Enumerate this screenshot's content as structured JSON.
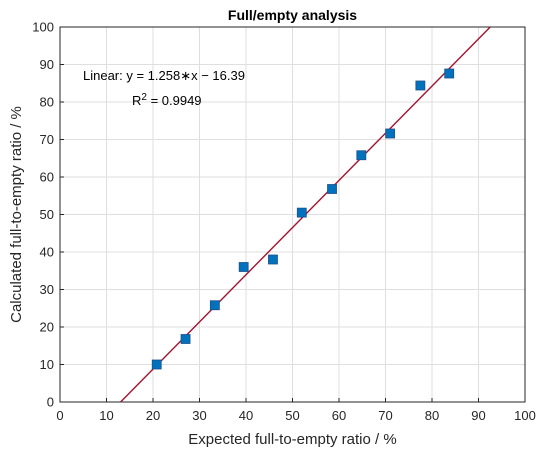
{
  "chart_data": {
    "type": "scatter",
    "title": "Full/empty analysis",
    "xlabel": "Expected full-to-empty ratio / %",
    "ylabel": "Calculated full-to-empty ratio / %",
    "xlim": [
      0,
      100
    ],
    "ylim": [
      0,
      100
    ],
    "xticks": [
      "0",
      "10",
      "20",
      "30",
      "40",
      "50",
      "60",
      "70",
      "80",
      "90",
      "100"
    ],
    "yticks": [
      "0",
      "10",
      "20",
      "30",
      "40",
      "50",
      "60",
      "70",
      "80",
      "90",
      "100"
    ],
    "grid": true,
    "points": [
      {
        "x": 20.8,
        "y": 10.0
      },
      {
        "x": 27.0,
        "y": 16.8
      },
      {
        "x": 33.3,
        "y": 25.8
      },
      {
        "x": 39.5,
        "y": 36.0
      },
      {
        "x": 45.8,
        "y": 38.0
      },
      {
        "x": 52.0,
        "y": 50.5
      },
      {
        "x": 58.5,
        "y": 56.8
      },
      {
        "x": 64.8,
        "y": 65.8
      },
      {
        "x": 71.0,
        "y": 71.6
      },
      {
        "x": 77.5,
        "y": 84.4
      },
      {
        "x": 83.7,
        "y": 87.6
      }
    ],
    "fit": {
      "slope": 1.258,
      "intercept": -16.39,
      "equation_label": "Linear:  y = 1.258∗x − 16.39",
      "r2_prefix": "R",
      "r2_sup": "2",
      "r2_value_label": " = 0.9949"
    },
    "colors": {
      "marker": "#0072BD",
      "marker_edge": "#1f4f8a",
      "fit_line": "#A2142F",
      "grid": "#dfdfdf",
      "axis": "#262626"
    }
  }
}
